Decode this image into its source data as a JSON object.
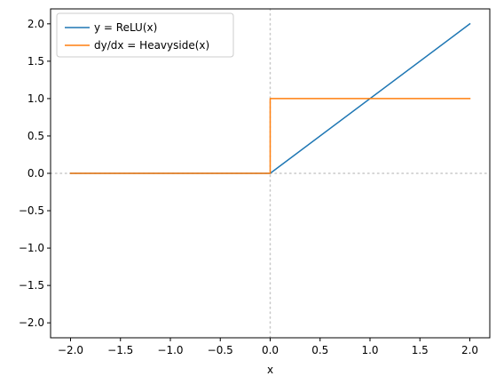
{
  "chart_data": {
    "type": "line",
    "title": "",
    "xlabel": "x",
    "ylabel": "",
    "xlim": [
      -2.2,
      2.2
    ],
    "ylim": [
      -2.2,
      2.2
    ],
    "xticks": [
      -2.0,
      -1.5,
      -1.0,
      -0.5,
      0.0,
      0.5,
      1.0,
      1.5,
      2.0
    ],
    "yticks": [
      -2.0,
      -1.5,
      -1.0,
      -0.5,
      0.0,
      0.5,
      1.0,
      1.5,
      2.0
    ],
    "xtick_labels": [
      "−2.0",
      "−1.5",
      "−1.0",
      "−0.5",
      "0.0",
      "0.5",
      "1.0",
      "1.5",
      "2.0"
    ],
    "ytick_labels": [
      "−2.0",
      "−1.5",
      "−1.0",
      "−0.5",
      "0.0",
      "0.5",
      "1.0",
      "1.5",
      "2.0"
    ],
    "grid": false,
    "reference_lines": {
      "x": 0,
      "y": 0,
      "style": "dotted",
      "color": "#c8c8c8"
    },
    "legend": {
      "placement": "top-left"
    },
    "series": [
      {
        "name": "y = ReLU(x)",
        "color": "#1f77b4",
        "x": [
          -2.0,
          0.0,
          2.0
        ],
        "y": [
          0.0,
          0.0,
          2.0
        ]
      },
      {
        "name": "dy/dx = Heavyside(x)",
        "color": "#ff7f0e",
        "x": [
          -2.0,
          0.0,
          0.0,
          2.0
        ],
        "y": [
          0.0,
          0.0,
          1.0,
          1.0
        ]
      }
    ]
  }
}
